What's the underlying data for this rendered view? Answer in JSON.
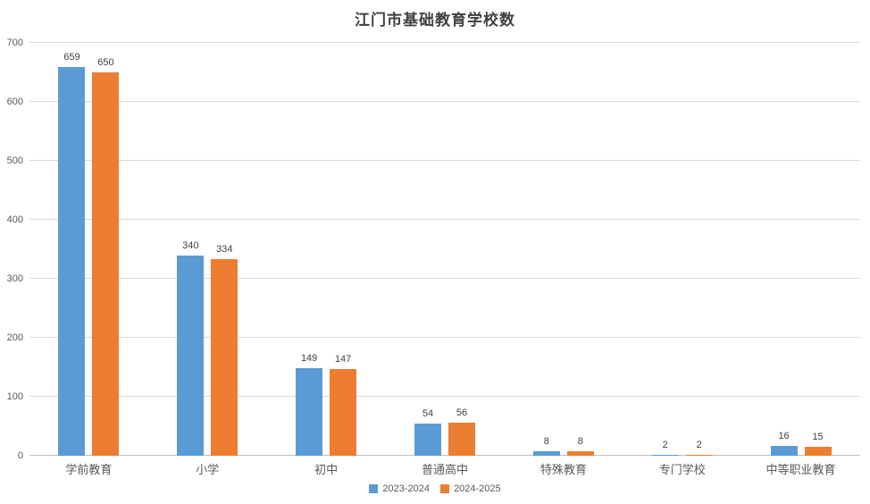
{
  "chart_data": {
    "type": "bar",
    "title": "江门市基础教育学校数",
    "categories": [
      "学前教育",
      "小学",
      "初中",
      "普通高中",
      "特殊教育",
      "专门学校",
      "中等职业教育"
    ],
    "series": [
      {
        "name": "2023-2024",
        "color": "#5B9BD5",
        "values": [
          659,
          340,
          149,
          54,
          8,
          2,
          16
        ]
      },
      {
        "name": "2024-2025",
        "color": "#ED7D31",
        "values": [
          650,
          334,
          147,
          56,
          8,
          2,
          15
        ]
      }
    ],
    "ylim": [
      0,
      700
    ],
    "ytick_step": 100,
    "yticks": [
      0,
      100,
      200,
      300,
      400,
      500,
      600,
      700
    ],
    "grid": true,
    "legend_position": "bottom",
    "data_labels": true
  },
  "colors": {
    "background": "#FFFFFF",
    "gridline": "#D9D9D9",
    "axis_line": "#BFBFBF",
    "tick_label": "#595959",
    "category_label": "#595959",
    "value_label": "#404040",
    "title": "#404040",
    "series_blue": "#5B9BD5",
    "series_orange": "#ED7D31"
  }
}
